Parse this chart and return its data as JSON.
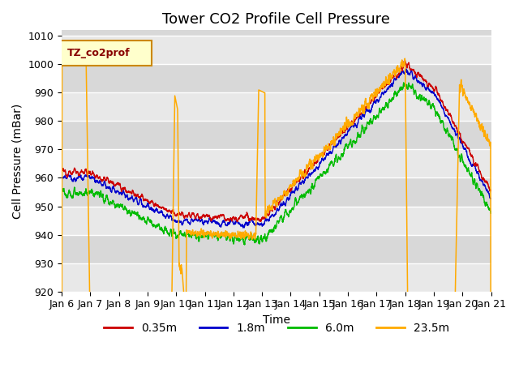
{
  "title": "Tower CO2 Profile Cell Pressure",
  "xlabel": "Time",
  "ylabel": "Cell Pressure (mBar)",
  "ylim": [
    920,
    1012
  ],
  "legend_label": "TZ_co2prof",
  "legend_entries": [
    "0.35m",
    "1.8m",
    "6.0m",
    "23.5m"
  ],
  "line_colors": [
    "#cc0000",
    "#0000cc",
    "#00bb00",
    "#ffaa00"
  ],
  "x_tick_labels": [
    "Jan 6",
    "Jan 7",
    "Jan 8",
    "Jan 9",
    "Jan 10",
    "Jan 11",
    "Jan 12",
    "Jan 13",
    "Jan 14",
    "Jan 15",
    "Jan 16",
    "Jan 17",
    "Jan 18",
    "Jan 19",
    "Jan 20",
    "Jan 21"
  ],
  "title_fontsize": 13,
  "axis_label_fontsize": 10,
  "tick_fontsize": 9,
  "band_colors": [
    "#e8e8e8",
    "#d8d8d8"
  ]
}
